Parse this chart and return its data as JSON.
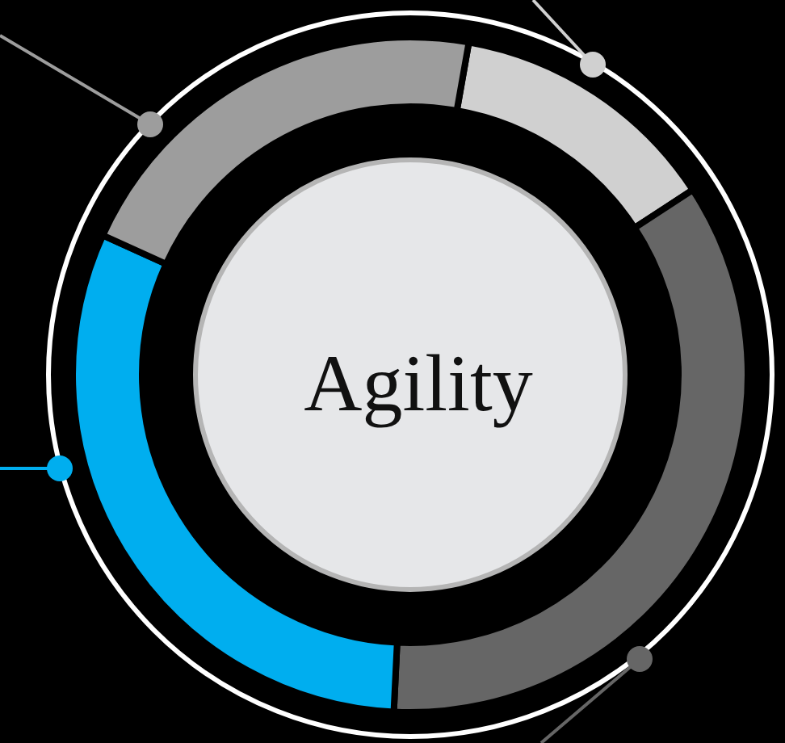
{
  "chart_data": {
    "type": "donut",
    "title": "Agility",
    "categories": [
      null,
      null,
      null,
      null
    ],
    "values": [
      13,
      35,
      31,
      21
    ],
    "colors": [
      "#d0d0d0",
      "#666666",
      "#00aeef",
      "#9d9d9d"
    ]
  }
}
